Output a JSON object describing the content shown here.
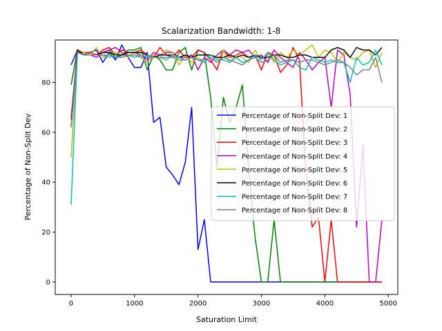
{
  "chart_data": {
    "type": "line",
    "title": "Scalarization Bandwidth: 1-8",
    "xlabel": "Saturation Limit",
    "ylabel": "Percentage of Non-Split Dev",
    "xlim": [
      -250,
      5150
    ],
    "ylim": [
      -5,
      97
    ],
    "xticks": [
      0,
      1000,
      2000,
      3000,
      4000,
      5000
    ],
    "yticks": [
      0,
      20,
      40,
      60,
      80
    ],
    "grid": false,
    "legend_position": "center-right",
    "x": [
      0,
      100,
      200,
      300,
      400,
      500,
      600,
      700,
      800,
      900,
      1000,
      1100,
      1200,
      1300,
      1400,
      1500,
      1600,
      1700,
      1800,
      1900,
      2000,
      2100,
      2200,
      2300,
      2400,
      2500,
      2600,
      2700,
      2800,
      2900,
      3000,
      3100,
      3200,
      3300,
      3400,
      3500,
      3600,
      3700,
      3800,
      3900,
      4000,
      4100,
      4200,
      4300,
      4400,
      4500,
      4600,
      4700,
      4800,
      4900
    ],
    "series": [
      {
        "name": "Percentage of Non-Split Dev: 1",
        "color": "#0000ff",
        "values": [
          87,
          93,
          91,
          92,
          93,
          88,
          92,
          89,
          95,
          90,
          86,
          86,
          92,
          64,
          66,
          46,
          43,
          39,
          48,
          70,
          13,
          25,
          0,
          0,
          0,
          0,
          0,
          0,
          0,
          0,
          0,
          0,
          0,
          0,
          0,
          0,
          0,
          0,
          0,
          0,
          0,
          0,
          0,
          0,
          0,
          0,
          0,
          0,
          0,
          0
        ]
      },
      {
        "name": "Percentage of Non-Split Dev: 2",
        "color": "#008000",
        "values": [
          79,
          93,
          92,
          91,
          91,
          92,
          93,
          90,
          91,
          93,
          93,
          94,
          85,
          91,
          89,
          85,
          85,
          92,
          94,
          85,
          93,
          92,
          74,
          46,
          74,
          64,
          70,
          79,
          45,
          18,
          0,
          0,
          25,
          0,
          0,
          0,
          0,
          0,
          0,
          0,
          0,
          0,
          0,
          0,
          0,
          0,
          0,
          0,
          0,
          0
        ]
      },
      {
        "name": "Percentage of Non-Split Dev: 3",
        "color": "#ff0000",
        "values": [
          65,
          93,
          92,
          92,
          91,
          93,
          94,
          91,
          93,
          92,
          92,
          93,
          91,
          90,
          94,
          91,
          90,
          93,
          90,
          90,
          93,
          92,
          89,
          85,
          93,
          90,
          91,
          92,
          90,
          91,
          85,
          92,
          91,
          84,
          87,
          94,
          89,
          45,
          22,
          26,
          0,
          25,
          0,
          0,
          0,
          0,
          0,
          0,
          0,
          0
        ]
      },
      {
        "name": "Percentage of Non-Split Dev: 4",
        "color": "#bf00bf",
        "values": [
          66,
          92,
          92,
          91,
          90,
          92,
          93,
          94,
          92,
          90,
          92,
          91,
          89,
          92,
          91,
          92,
          92,
          90,
          90,
          91,
          85,
          90,
          88,
          91,
          93,
          91,
          93,
          92,
          93,
          90,
          91,
          88,
          93,
          90,
          88,
          86,
          92,
          89,
          85,
          88,
          90,
          70,
          93,
          91,
          75,
          22,
          55,
          0,
          0,
          25
        ]
      },
      {
        "name": "Percentage of Non-Split Dev: 5",
        "color": "#bfbf00",
        "values": [
          50,
          93,
          92,
          91,
          94,
          90,
          91,
          92,
          91,
          90,
          92,
          90,
          88,
          91,
          90,
          93,
          92,
          87,
          91,
          88,
          90,
          88,
          91,
          89,
          93,
          88,
          91,
          90,
          88,
          93,
          89,
          92,
          88,
          92,
          90,
          93,
          91,
          93,
          95,
          90,
          93,
          92,
          88,
          92,
          90,
          89,
          92,
          93,
          86,
          92
        ]
      },
      {
        "name": "Percentage of Non-Split Dev: 6",
        "color": "#000000",
        "values": [
          62,
          93,
          91,
          91,
          91,
          92,
          92,
          91,
          91,
          92,
          92,
          92,
          91,
          90,
          91,
          91,
          91,
          90,
          91,
          90,
          91,
          91,
          91,
          90,
          90,
          91,
          90,
          91,
          90,
          91,
          90,
          90,
          91,
          91,
          90,
          90,
          91,
          91,
          90,
          90,
          90,
          93,
          94,
          93,
          90,
          94,
          93,
          93,
          91,
          94
        ]
      },
      {
        "name": "Percentage of Non-Split Dev: 7",
        "color": "#00bfbf",
        "values": [
          31,
          92,
          91,
          91,
          91,
          91,
          90,
          91,
          90,
          91,
          90,
          91,
          90,
          90,
          90,
          89,
          91,
          90,
          89,
          90,
          89,
          88,
          91,
          89,
          89,
          88,
          90,
          88,
          89,
          91,
          89,
          92,
          89,
          87,
          88,
          89,
          86,
          85,
          90,
          89,
          88,
          89,
          88,
          88,
          80,
          90,
          87,
          88,
          93,
          87
        ]
      },
      {
        "name": "Percentage of Non-Split Dev: 8",
        "color": "#708090",
        "values": [
          62,
          92,
          91,
          91,
          91,
          91,
          91,
          90,
          90,
          91,
          91,
          90,
          91,
          90,
          90,
          90,
          90,
          89,
          89,
          90,
          89,
          89,
          90,
          88,
          90,
          89,
          88,
          87,
          89,
          90,
          88,
          89,
          91,
          88,
          89,
          89,
          88,
          89,
          89,
          88,
          87,
          88,
          89,
          88,
          86,
          83,
          85,
          85,
          90,
          80
        ]
      }
    ]
  }
}
